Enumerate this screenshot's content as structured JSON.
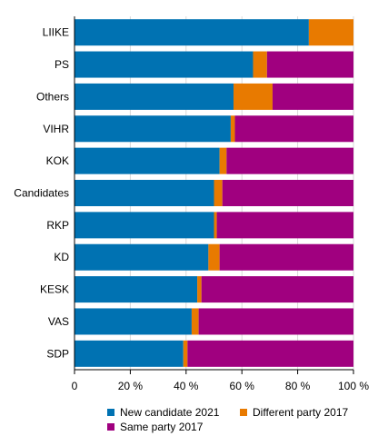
{
  "chart_data": {
    "type": "bar",
    "orientation": "horizontal",
    "stacked": true,
    "categories": [
      "LIIKE",
      "PS",
      "Others",
      "VIHR",
      "KOK",
      "Candidates",
      "RKP",
      "KD",
      "KESK",
      "VAS",
      "SDP"
    ],
    "series": [
      {
        "name": "New candidate 2021",
        "color": "#0072b2",
        "values": [
          84,
          64,
          57,
          56,
          52,
          50,
          50,
          48,
          44,
          42,
          39
        ]
      },
      {
        "name": "Different party 2017",
        "color": "#e87a00",
        "values": [
          16,
          5,
          14,
          1.5,
          2.5,
          3,
          1,
          4,
          1.5,
          2.5,
          1.5
        ]
      },
      {
        "name": "Same party 2017",
        "color": "#a0007f",
        "values": [
          0,
          31,
          29,
          42.5,
          45.5,
          47,
          49,
          48,
          54.5,
          55.5,
          59.5
        ]
      }
    ],
    "x_ticks": [
      "0",
      "20 %",
      "40 %",
      "60 %",
      "80 %",
      "100 %"
    ],
    "xlim": [
      0,
      100
    ],
    "grid": "vertical",
    "legend_position": "bottom"
  }
}
